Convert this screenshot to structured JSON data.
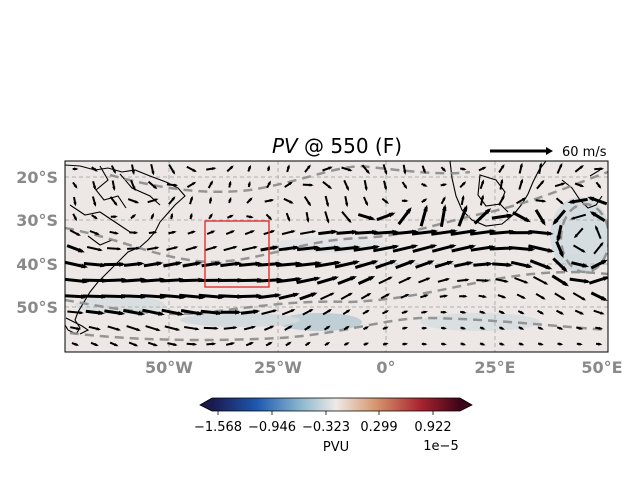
{
  "title_italic": "PV",
  "title_rest": " @ 550 (F)",
  "quiver_key": {
    "label": "60 m/s"
  },
  "map": {
    "lat_labels": [
      "20°S",
      "30°S",
      "40°S",
      "50°S"
    ],
    "lat_values": [
      -20,
      -30,
      -40,
      -50
    ],
    "lon_labels": [
      "50°W",
      "25°W",
      "0°",
      "25°E",
      "50°E"
    ],
    "lon_values": [
      -50,
      -25,
      0,
      25,
      50
    ],
    "lon_range": [
      -74,
      50
    ],
    "lat_range": [
      -60,
      -16
    ],
    "highlight_box": {
      "lon": [
        -43,
        -27.5
      ],
      "lat": [
        -45.5,
        -30
      ]
    },
    "box_color": "#e03030",
    "gridlines": true
  },
  "colorbar": {
    "label": "PVU",
    "ticks": [
      "−1.568",
      "−0.946",
      "−0.323",
      "0.299",
      "0.922"
    ],
    "multiplier": "1e−5",
    "colormap": "diverging blue-white-red",
    "colors": [
      "#1a1a4e",
      "#1d58b0",
      "#8db8cf",
      "#eeeae6",
      "#d6966f",
      "#a92430",
      "#3d0518"
    ]
  }
}
